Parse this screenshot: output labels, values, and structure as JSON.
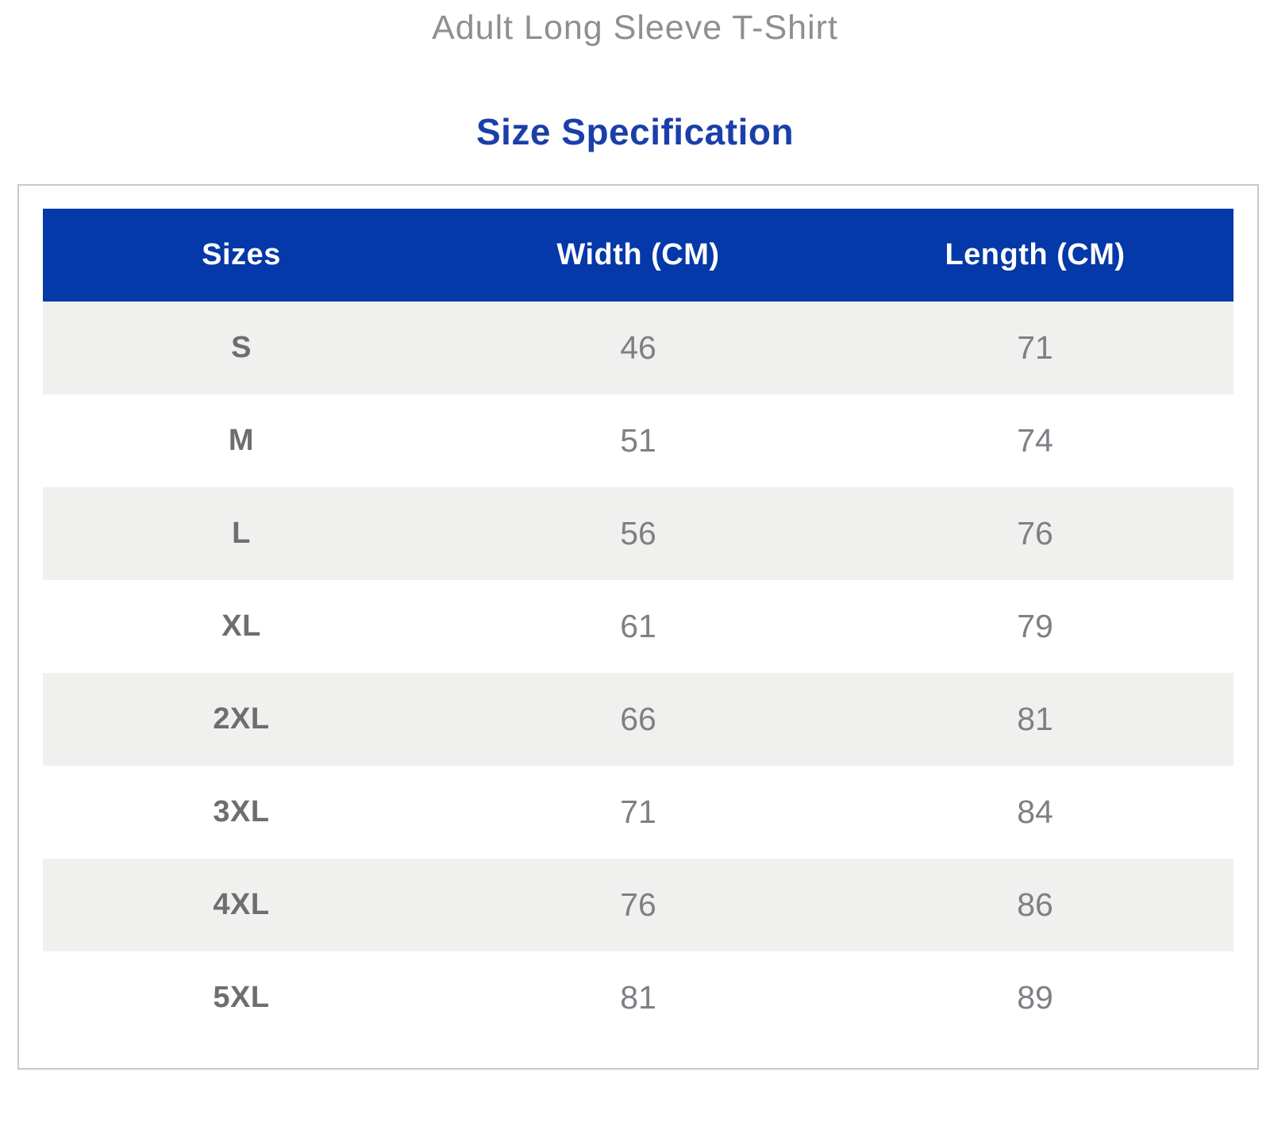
{
  "header": {
    "product_title": "Adult Long Sleeve T-Shirt",
    "section_title": "Size Specification"
  },
  "table": {
    "headers": [
      "Sizes",
      "Width (CM)",
      "Length (CM)"
    ],
    "rows": [
      {
        "size": "S",
        "width_cm": "46",
        "length_cm": "71"
      },
      {
        "size": "M",
        "width_cm": "51",
        "length_cm": "74"
      },
      {
        "size": "L",
        "width_cm": "56",
        "length_cm": "76"
      },
      {
        "size": "XL",
        "width_cm": "61",
        "length_cm": "79"
      },
      {
        "size": "2XL",
        "width_cm": "66",
        "length_cm": "81"
      },
      {
        "size": "3XL",
        "width_cm": "71",
        "length_cm": "84"
      },
      {
        "size": "4XL",
        "width_cm": "76",
        "length_cm": "86"
      },
      {
        "size": "5XL",
        "width_cm": "81",
        "length_cm": "89"
      }
    ]
  },
  "colors": {
    "table_header_bg": "#0538a8",
    "table_header_text": "#ffffff",
    "section_title_text": "#1a3fa9",
    "product_title_text": "#8f8f8f",
    "row_alt_bg": "#f0f0ef",
    "cell_text": "#7d8084",
    "size_label_text": "#6e6e6e",
    "panel_border": "#c9c9c9"
  }
}
